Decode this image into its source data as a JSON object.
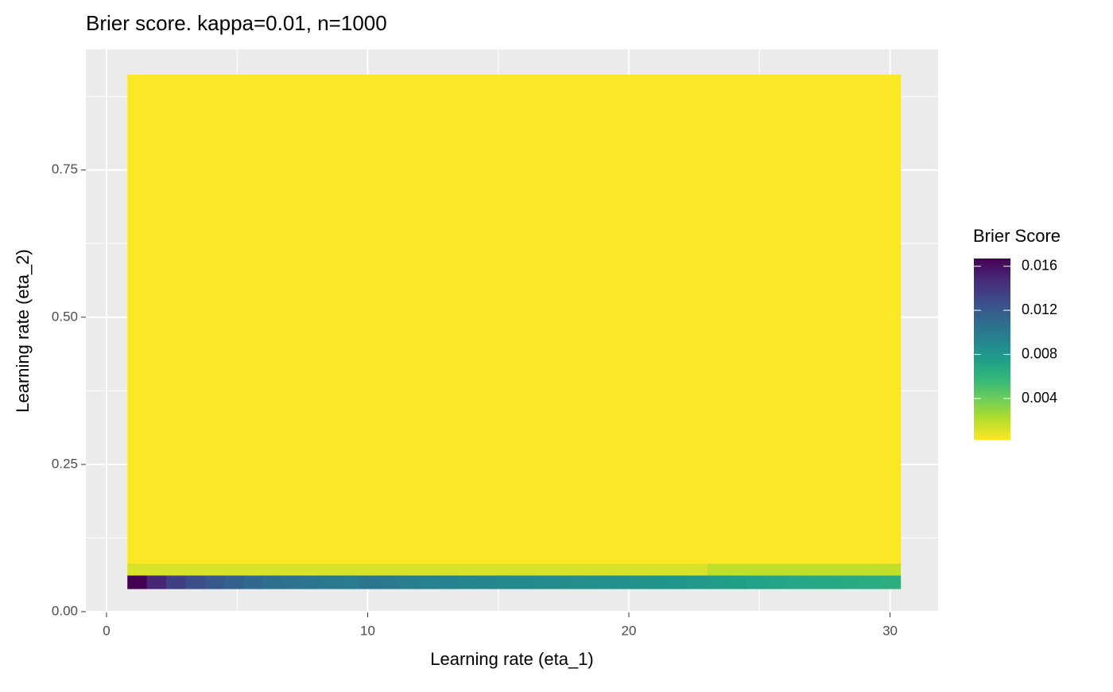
{
  "chart_data": {
    "type": "heatmap",
    "title": "Brier score. kappa=0.01, n=1000",
    "x_label": "Learning rate (eta_1)",
    "y_label": "Learning rate (eta_2)",
    "legend_title": "Brier Score",
    "xlim": [
      -0.79,
      31.84
    ],
    "xticks": [
      0,
      10,
      20,
      30
    ],
    "xminor": [
      5,
      15,
      25
    ],
    "ylim": [
      -0.0014,
      0.955
    ],
    "yticks": [
      {
        "value": 0,
        "label": "0.00"
      },
      {
        "value": 0.25,
        "label": "0.25"
      },
      {
        "value": 0.5,
        "label": "0.50"
      },
      {
        "value": 0.75,
        "label": "0.75"
      }
    ],
    "yminor": [
      0.125,
      0.375,
      0.625,
      0.875
    ],
    "grid": true,
    "x_edges": [
      0.8,
      1.54,
      2.28,
      3.02,
      3.76,
      4.5,
      5.24,
      5.98,
      6.72,
      7.46,
      8.2,
      8.94,
      9.68,
      10.42,
      11.16,
      11.9,
      12.64,
      13.38,
      14.12,
      14.86,
      15.6,
      16.34,
      17.08,
      17.82,
      18.56,
      19.3,
      20.04,
      20.78,
      21.52,
      22.26,
      23,
      23.74,
      24.48,
      25.22,
      25.96,
      26.7,
      27.44,
      28.18,
      28.92,
      29.66,
      30.4
    ],
    "y_edges": [
      0.039,
      0.062,
      0.082,
      0.912
    ],
    "z": [
      [
        0.0167,
        0.015,
        0.0136,
        0.0128,
        0.0122,
        0.0117,
        0.0112,
        0.0108,
        0.0105,
        0.0102,
        0.01,
        0.0098,
        0.0103,
        0.01,
        0.0097,
        0.0095,
        0.0094,
        0.0092,
        0.0091,
        0.009,
        0.0089,
        0.0088,
        0.0087,
        0.0086,
        0.0085,
        0.0084,
        0.0083,
        0.0082,
        0.0081,
        0.0079,
        0.0077,
        0.0075,
        0.0073,
        0.0071,
        0.007,
        0.0069,
        0.0068,
        0.0067,
        0.0066,
        0.0064
      ],
      [
        0.0012,
        0.0012,
        0.0012,
        0.0012,
        0.0012,
        0.0012,
        0.0012,
        0.0012,
        0.0012,
        0.0012,
        0.0012,
        0.0012,
        0.0012,
        0.0012,
        0.0012,
        0.0012,
        0.0012,
        0.0012,
        0.0012,
        0.0012,
        0.0012,
        0.0012,
        0.0012,
        0.0012,
        0.0012,
        0.0012,
        0.0012,
        0.0012,
        0.0012,
        0.0012,
        0.0018,
        0.0018,
        0.0018,
        0.0018,
        0.0018,
        0.0018,
        0.0018,
        0.0018,
        0.0018,
        0.0018
      ],
      [
        0.0003,
        0.0003,
        0.0003,
        0.0003,
        0.0003,
        0.0003,
        0.0003,
        0.0003,
        0.0003,
        0.0003,
        0.0003,
        0.0003,
        0.0003,
        0.0003,
        0.0003,
        0.0003,
        0.0003,
        0.0003,
        0.0003,
        0.0003,
        0.0003,
        0.0003,
        0.0003,
        0.0003,
        0.0003,
        0.0003,
        0.0003,
        0.0003,
        0.0003,
        0.0003,
        0.0003,
        0.0003,
        0.0003,
        0.0003,
        0.0003,
        0.0003,
        0.0003,
        0.0003,
        0.0003,
        0.0003
      ]
    ],
    "fill_limits": [
      0.00025,
      0.0167
    ],
    "fill_ticks": [
      0.004,
      0.008,
      0.012,
      0.016
    ],
    "colormap": [
      "#fde725",
      "#b5de2b",
      "#6ece58",
      "#35b779",
      "#1f9e89",
      "#26828e",
      "#31688e",
      "#3e4989",
      "#482878",
      "#440154"
    ]
  }
}
